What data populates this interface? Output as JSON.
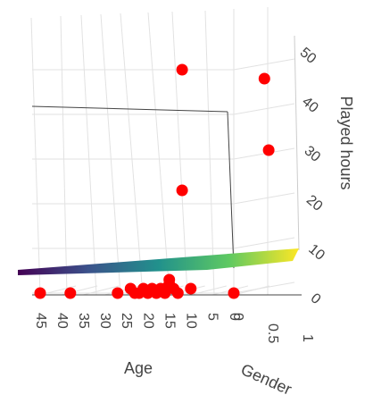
{
  "chart_data": {
    "type": "scatter",
    "subtype": "3d-scatter-with-regression-surface",
    "title": "",
    "axes": {
      "x": {
        "label": "Age",
        "range": [
          0,
          45
        ],
        "ticks": [
          "0",
          "5",
          "10",
          "15",
          "20",
          "25",
          "30",
          "35",
          "40",
          "45"
        ]
      },
      "gender": {
        "label": "Gender",
        "range": [
          0,
          1
        ],
        "ticks": [
          "0",
          "0.5",
          "1"
        ]
      },
      "z": {
        "label": "Played hours",
        "range": [
          0,
          50
        ],
        "ticks": [
          "0",
          "10",
          "20",
          "30",
          "40",
          "50"
        ]
      }
    },
    "grid": true,
    "legend": "none",
    "colors": {
      "points": "#ff0000",
      "surface_low": "#440154",
      "surface_high": "#fde725"
    },
    "points": [
      {
        "age": 45,
        "gender": 0,
        "hours": 0
      },
      {
        "age": 38,
        "gender": 0,
        "hours": 0
      },
      {
        "age": 27,
        "gender": 0,
        "hours": 0
      },
      {
        "age": 24,
        "gender": 0,
        "hours": 1
      },
      {
        "age": 23,
        "gender": 0,
        "hours": 0
      },
      {
        "age": 22,
        "gender": 0,
        "hours": 0
      },
      {
        "age": 21,
        "gender": 0,
        "hours": 1
      },
      {
        "age": 20,
        "gender": 0,
        "hours": 0
      },
      {
        "age": 19,
        "gender": 0,
        "hours": 1
      },
      {
        "age": 18,
        "gender": 0,
        "hours": 0
      },
      {
        "age": 17,
        "gender": 0,
        "hours": 1
      },
      {
        "age": 16,
        "gender": 0,
        "hours": 0
      },
      {
        "age": 16,
        "gender": 0,
        "hours": 1
      },
      {
        "age": 15,
        "gender": 0,
        "hours": 2
      },
      {
        "age": 14,
        "gender": 0,
        "hours": 1
      },
      {
        "age": 13,
        "gender": 0,
        "hours": 0
      },
      {
        "age": 15,
        "gender": 0,
        "hours": 3
      },
      {
        "age": 10,
        "gender": 0,
        "hours": 1
      },
      {
        "age": 0,
        "gender": 0,
        "hours": 0
      },
      {
        "age": 24,
        "gender": 1,
        "hours": 40
      },
      {
        "age": 23,
        "gender": 1,
        "hours": 24
      },
      {
        "age": 12,
        "gender": 0,
        "hours": 50
      },
      {
        "age": 12,
        "gender": 0,
        "hours": 23
      }
    ]
  }
}
